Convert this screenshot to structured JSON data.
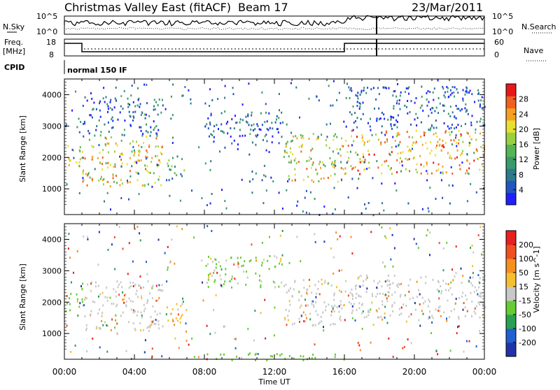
{
  "header": {
    "station": "Christmas Valley East (fitACF)",
    "beam": "Beam 17",
    "date": "23/Mar/2011"
  },
  "status_panels": {
    "nsky_label": "N.Sky",
    "nsearch_label": "N.Search",
    "freq_label_line1": "Freq.",
    "freq_label_line2": "[MHz]",
    "nave_label": "Nave",
    "cpid_label": "CPID",
    "cpid_value": "normal 150 IF",
    "noise_ticks_left": [
      "10^5",
      "10^0"
    ],
    "noise_ticks_right": [
      "10^5",
      "10^0"
    ],
    "freq_ticks": [
      "18",
      "8"
    ],
    "nave_ticks": [
      "60",
      "0"
    ]
  },
  "chart_data": [
    {
      "type": "heatmap",
      "panel": "power",
      "ylabel": "Slant Range [km]",
      "ytick_labels": [
        "1000",
        "2000",
        "3000",
        "4000"
      ],
      "ylim": [
        180,
        4500
      ],
      "colorbar": {
        "label": "Power [dB]",
        "tick_labels": [
          "4",
          "8",
          "12",
          "16",
          "20",
          "24",
          "28"
        ],
        "colors": [
          "#1f1fff",
          "#2255c0",
          "#2c7a8a",
          "#3a9a6a",
          "#55b552",
          "#9ad040",
          "#e8e030",
          "#f5a020",
          "#f06020",
          "#e81818"
        ],
        "range": [
          0,
          30
        ]
      },
      "echo_regions": [
        {
          "t0": 0.0,
          "t1": 1.0,
          "r0": 1600,
          "r1": 2500,
          "dB": 18
        },
        {
          "t0": 1.0,
          "t1": 5.6,
          "r0": 1100,
          "r1": 2700,
          "dB": 20
        },
        {
          "t0": 1.0,
          "t1": 5.6,
          "r0": 2700,
          "r1": 4000,
          "dB": 6
        },
        {
          "t0": 5.8,
          "t1": 7.0,
          "r0": 1300,
          "r1": 2100,
          "dB": 10
        },
        {
          "t0": 8.0,
          "t1": 12.5,
          "r0": 2500,
          "r1": 3500,
          "dB": 6
        },
        {
          "t0": 12.5,
          "t1": 16.0,
          "r0": 1250,
          "r1": 2800,
          "dB": 18
        },
        {
          "t0": 16.0,
          "t1": 24.0,
          "r0": 1500,
          "r1": 2900,
          "dB": 22
        },
        {
          "t0": 16.0,
          "t1": 24.0,
          "r0": 2900,
          "r1": 4300,
          "dB": 5
        }
      ]
    },
    {
      "type": "heatmap",
      "panel": "velocity",
      "ylabel": "Slant Range [km]",
      "ytick_labels": [
        "1000",
        "2000",
        "3000",
        "4000"
      ],
      "ylim": [
        180,
        4500
      ],
      "colorbar": {
        "label": "Velocity [m s^-1]",
        "tick_labels": [
          "200",
          "100",
          "50",
          "15",
          "-15",
          "-50",
          "-100",
          "-200"
        ],
        "colors": [
          "#2233aa",
          "#1f5fd0",
          "#2aa052",
          "#66cc33",
          "#c8c8c8",
          "#f5c030",
          "#f59020",
          "#f05020",
          "#e82020"
        ],
        "range": [
          -250,
          250
        ]
      },
      "echo_regions": [
        {
          "t0": 0.0,
          "t1": 1.0,
          "r0": 1600,
          "r1": 2500,
          "v": -40
        },
        {
          "t0": 1.0,
          "t1": 5.6,
          "r0": 1100,
          "r1": 2700,
          "v": 0
        },
        {
          "t0": 5.8,
          "t1": 7.0,
          "r0": 1300,
          "r1": 2100,
          "v": 70
        },
        {
          "t0": 8.0,
          "t1": 12.5,
          "r0": 2500,
          "r1": 3500,
          "v": -30
        },
        {
          "t0": 12.5,
          "t1": 16.0,
          "r0": 1250,
          "r1": 2800,
          "v": 10
        },
        {
          "t0": 16.0,
          "t1": 24.0,
          "r0": 1500,
          "r1": 2900,
          "v": 0
        },
        {
          "t0": 8.0,
          "t1": 16.0,
          "r0": 180,
          "r1": 400,
          "v": -60
        }
      ]
    }
  ],
  "time_axis": {
    "xlabel": "Time UT",
    "tick_labels": [
      "00:00",
      "04:00",
      "08:00",
      "12:00",
      "16:00",
      "20:00",
      "00:00"
    ],
    "xlim": [
      0,
      24
    ]
  }
}
